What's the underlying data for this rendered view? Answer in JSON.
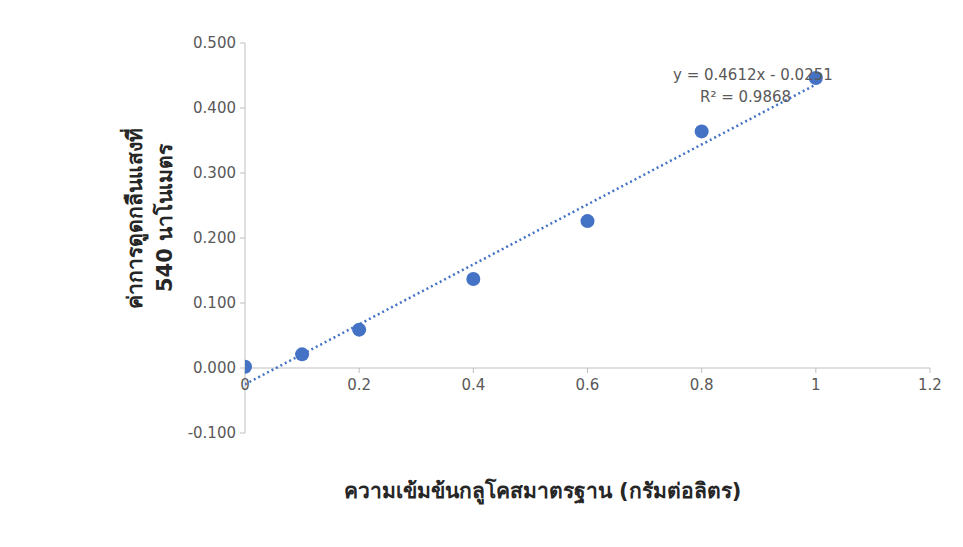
{
  "chart_data": {
    "type": "scatter",
    "x_label": "ความเข้มข้นกลูโคสมาตรฐาน (กรัมต่อลิตร)",
    "y_label": "ค่าการดูดกลืนแสงที่ 540 นาโนเมตร",
    "series": [
      {
        "type": "scatter",
        "color": "#4472c4",
        "marker": "circle",
        "x": [
          0,
          0.1,
          0.2,
          0.4,
          0.6,
          0.8,
          1
        ],
        "values": [
          0.002,
          0.021,
          0.059,
          0.137,
          0.226,
          0.364,
          0.446
        ]
      },
      {
        "type": "line",
        "color": "#4472c4",
        "line_style": "dotted",
        "x": [
          0,
          1
        ],
        "values": [
          -0.0251,
          0.4361
        ]
      }
    ],
    "annotations": [
      "y = 0.4612x - 0.0251",
      "R² = 0.9868"
    ],
    "xlim": [
      0,
      1.2
    ],
    "xticks": [
      0,
      0.2,
      0.4,
      0.6,
      0.8,
      1,
      1.2
    ],
    "ylim": [
      -0.1,
      0.5
    ],
    "yticks": [
      {
        "value": -0.1,
        "label": "-0.100"
      },
      {
        "value": 0,
        "label": "0.000"
      },
      {
        "value": 0.1,
        "label": "0.100"
      },
      {
        "value": 0.2,
        "label": "0.200"
      },
      {
        "value": 0.3,
        "label": "0.300"
      },
      {
        "value": 0.4,
        "label": "0.400"
      },
      {
        "value": 0.5,
        "label": "0.500"
      }
    ],
    "grid": false
  }
}
